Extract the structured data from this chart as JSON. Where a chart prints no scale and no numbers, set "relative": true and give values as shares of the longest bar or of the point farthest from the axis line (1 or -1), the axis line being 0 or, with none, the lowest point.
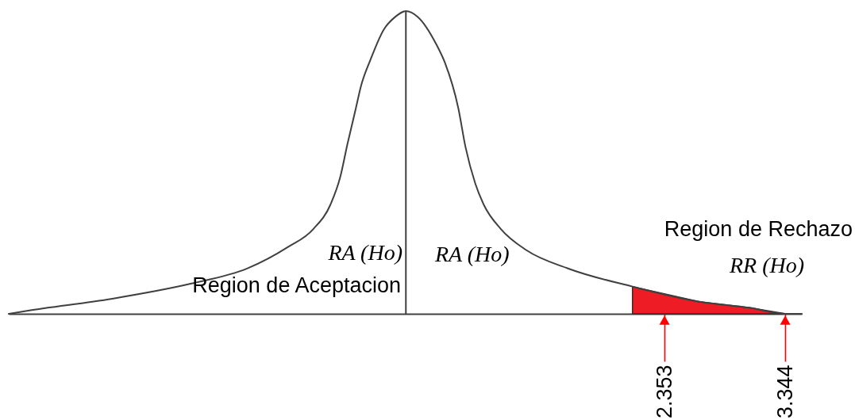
{
  "chart_data": {
    "type": "line",
    "relative": true,
    "xlim": [
      -3.03,
      3.48
    ],
    "xticks": [
      {
        "value": 2.353,
        "label": "2.353"
      },
      {
        "value": 3.344,
        "label": "3.344"
      }
    ],
    "series": [
      {
        "color": "#404040",
        "x": [
          -3.03,
          -2.88,
          -2.18,
          -1.53,
          -1.07,
          -0.74,
          -0.53,
          -0.39,
          -0.31,
          -0.25,
          -0.18,
          -0.14,
          -0.06,
          0.05,
          0.14,
          0.23,
          0.33,
          0.48,
          0.55,
          0.66,
          0.72,
          0.8,
          0.87,
          1.01,
          1.22,
          1.56,
          2.09,
          2.64,
          3.05,
          3.35,
          3.48
        ],
        "values": [
          0,
          0.01,
          0.05,
          0.1,
          0.15,
          0.22,
          0.28,
          0.36,
          0.45,
          0.56,
          0.68,
          0.75,
          0.84,
          0.94,
          0.98,
          1,
          0.98,
          0.89,
          0.83,
          0.68,
          0.55,
          0.43,
          0.36,
          0.28,
          0.21,
          0.15,
          0.09,
          0.04,
          0.02,
          0,
          0
        ]
      },
      {
        "type": "area",
        "color": "#ee1c24",
        "x": [
          2.09,
          2.64,
          3.05,
          3.35
        ],
        "values": [
          0.09,
          0.04,
          0.02,
          0
        ]
      }
    ],
    "ref_lines": [
      {
        "axis": "x",
        "value": 0.23,
        "color": "#404040"
      }
    ],
    "annotations": [
      "RA (Ho)",
      "Region de Aceptacion",
      "RA (Ho)",
      "Region de Rechazo",
      "RR (Ho)"
    ]
  }
}
